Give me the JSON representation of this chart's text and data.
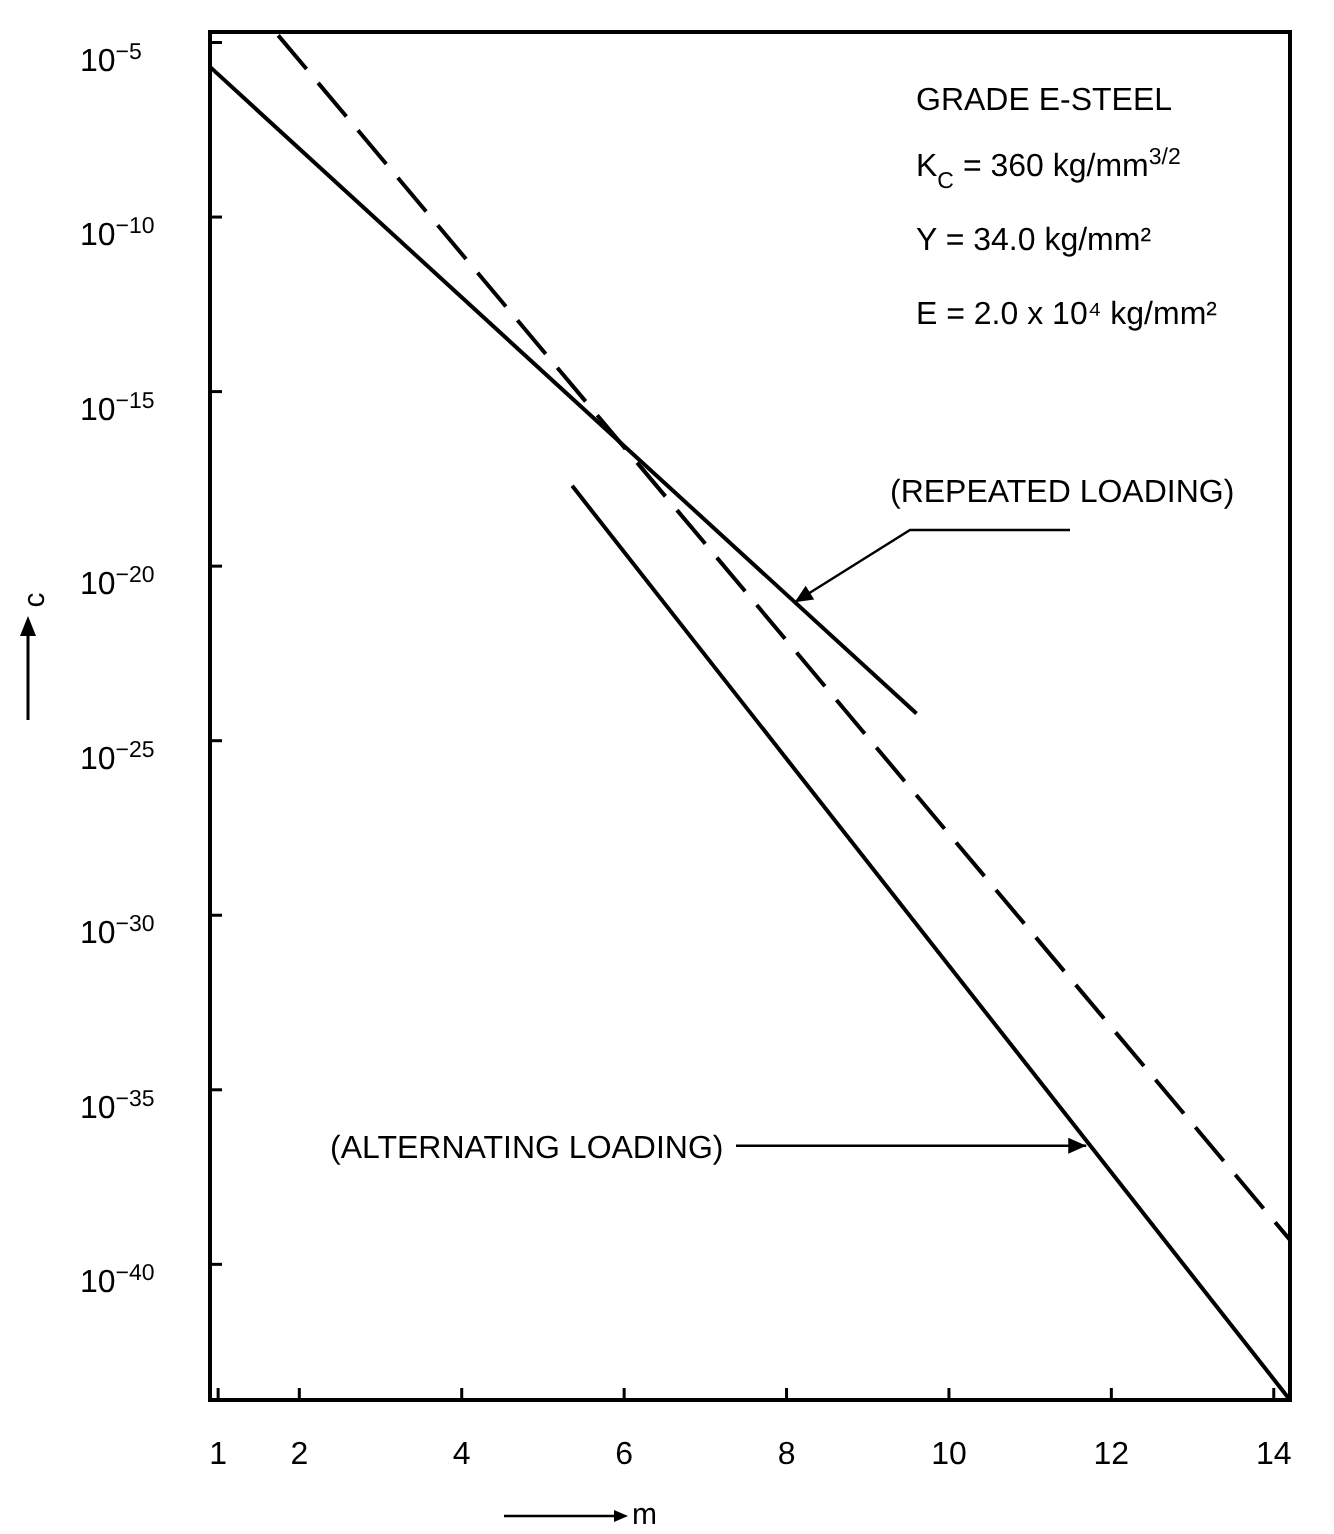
{
  "chart_data": {
    "type": "line",
    "xlabel": "m",
    "ylabel": "c",
    "log": true,
    "xlim": [
      0.9,
      14.2
    ],
    "xticks": [
      1,
      2,
      4,
      6,
      8,
      10,
      12,
      14
    ],
    "ylim": [
      1.3e-44,
      2e-05
    ],
    "yticks": [
      {
        "value": 1e-05,
        "label": "10$^{−5}$"
      },
      {
        "value": 1e-10,
        "label": "10$^{−10}$"
      },
      {
        "value": 1e-15,
        "label": "10$^{−15}$"
      },
      {
        "value": 1e-20,
        "label": "10$^{−20}$"
      },
      {
        "value": 1e-25,
        "label": "10$^{−25}$"
      },
      {
        "value": 1e-30,
        "label": "10$^{−30}$"
      },
      {
        "value": 1e-35,
        "label": "10$^{−35}$"
      },
      {
        "value": 1e-40,
        "label": "10$^{−40}$"
      }
    ],
    "series": [
      {
        "color": "#000000",
        "line_style": "solid",
        "x": [
          0.9,
          9.6
        ],
        "values": [
          2e-06,
          6e-25
        ]
      },
      {
        "color": "#000000",
        "line_style": "dashed",
        "x": [
          1.74,
          14.2
        ],
        "values": [
          1.6e-05,
          5e-40
        ]
      },
      {
        "color": "#000000",
        "line_style": "solid",
        "x": [
          5.36,
          14.2
        ],
        "values": [
          2e-18,
          1.3e-44
        ]
      }
    ],
    "annotations": [
      "GRADE E-STEEL",
      "K$_{C}$ = 360 kg/mm$^{3/2}$",
      "Y  = 34.0 kg/mm²",
      "E  = 2.0 x 10⁴ kg/mm²",
      {
        "text": "(REPEATED LOADING)",
        "x": 8.1,
        "y": 9.3e-22
      },
      {
        "text": "(ALTERNATING LOADING)",
        "x": 11.74,
        "y": 2.5e-37
      }
    ]
  }
}
